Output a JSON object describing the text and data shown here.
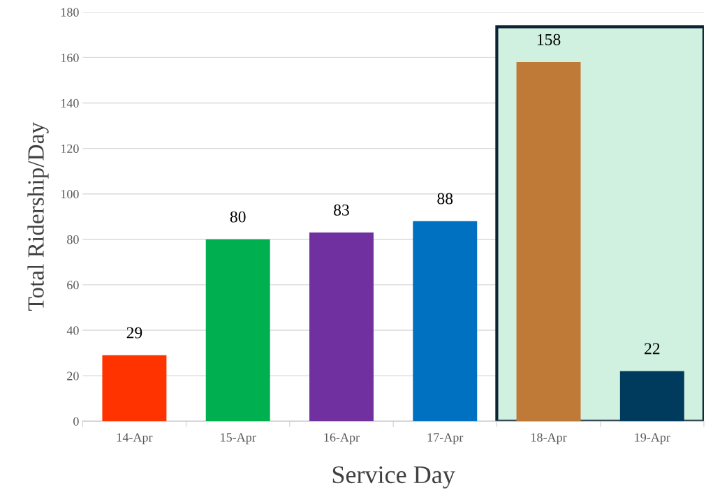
{
  "chart_data": {
    "type": "bar",
    "xlabel": "Service Day",
    "ylabel": "Total Ridership/Day",
    "categories": [
      "14-Apr",
      "15-Apr",
      "16-Apr",
      "17-Apr",
      "18-Apr",
      "19-Apr"
    ],
    "values": [
      29,
      80,
      83,
      88,
      158,
      22
    ],
    "colors": [
      "#ff3300",
      "#00b050",
      "#7030a0",
      "#0070c0",
      "#c07a38",
      "#003a5c"
    ],
    "data_labels": true,
    "ylim": [
      0,
      180
    ],
    "yticks": [
      0,
      20,
      40,
      60,
      80,
      100,
      120,
      140,
      160,
      180
    ],
    "grid": "y",
    "bands": [
      {
        "axis": "x",
        "from": "18-Apr",
        "to": "19-Apr",
        "color": "#d0f0e0"
      }
    ]
  }
}
